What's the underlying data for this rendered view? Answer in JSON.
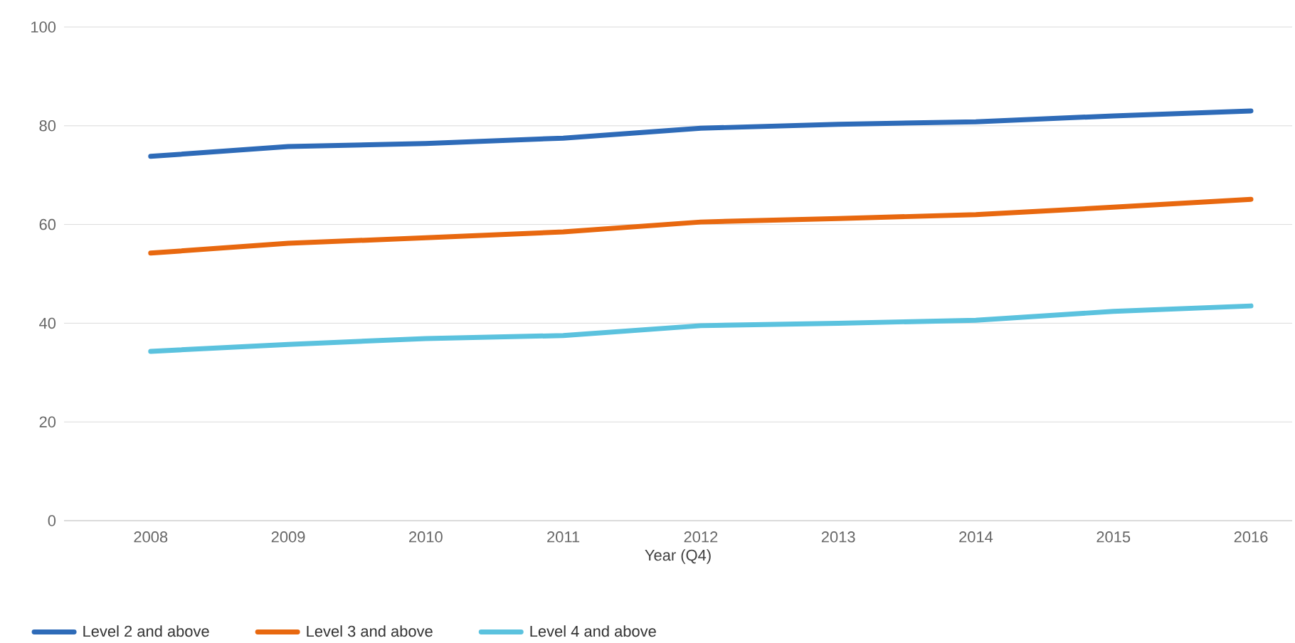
{
  "chart_data": {
    "type": "line",
    "xlabel": "Year (Q4)",
    "categories": [
      "2008",
      "2009",
      "2010",
      "2011",
      "2012",
      "2013",
      "2014",
      "2015",
      "2016"
    ],
    "series": [
      {
        "name": "Level 2 and above",
        "color": "#2e6bb8",
        "values": [
          73.8,
          75.8,
          76.4,
          77.5,
          79.5,
          80.3,
          80.8,
          82,
          83
        ]
      },
      {
        "name": "Level 3 and above",
        "color": "#e8680f",
        "values": [
          54.2,
          56.2,
          57.3,
          58.5,
          60.5,
          61.2,
          62,
          63.5,
          65.1
        ]
      },
      {
        "name": "Level 4 and above",
        "color": "#5bc2de",
        "values": [
          34.3,
          35.7,
          36.9,
          37.5,
          39.5,
          40,
          40.6,
          42.4,
          43.5
        ]
      }
    ],
    "ylim": [
      0,
      100
    ],
    "yticks": [
      0,
      20,
      40,
      60,
      80,
      100
    ],
    "grid": "y",
    "legend": "bottom left",
    "marker": "none",
    "line_style": "solid"
  }
}
